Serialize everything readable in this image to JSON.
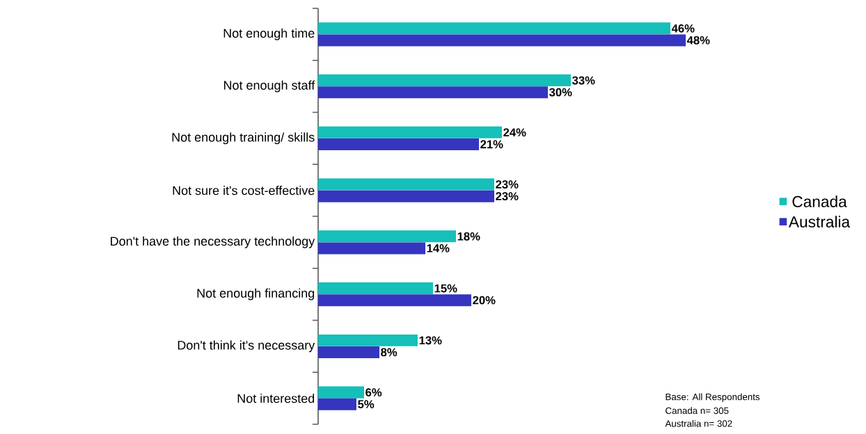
{
  "chart_data": {
    "type": "bar",
    "orientation": "horizontal",
    "categories": [
      "Not enough time",
      "Not enough staff",
      "Not enough training/ skills",
      "Not sure it's cost-effective",
      "Don't have the necessary technology",
      "Not enough financing",
      "Don't think it's necessary",
      "Not interested"
    ],
    "series": [
      {
        "name": "Canada",
        "color": "#14c0b8",
        "values": [
          46,
          33,
          24,
          23,
          18,
          15,
          13,
          6
        ],
        "value_labels": [
          "46%",
          "33%",
          "24%",
          "23%",
          "18%",
          "15%",
          "13%",
          "6%"
        ]
      },
      {
        "name": "Australia",
        "color": "#3535c0",
        "values": [
          48,
          30,
          21,
          23,
          14,
          20,
          8,
          5
        ],
        "value_labels": [
          "48%",
          "30%",
          "21%",
          "23%",
          "14%",
          "20%",
          "8%",
          "5%"
        ]
      }
    ],
    "legend": "right",
    "annotations": [
      "Base: All Respondents",
      "Canada n= 305",
      "Australia n= 302"
    ]
  }
}
